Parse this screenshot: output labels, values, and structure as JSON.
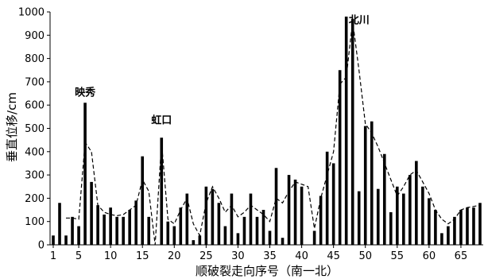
{
  "chart_data": {
    "type": "bar",
    "xlabel": "顺破裂走向序号（南一北）",
    "ylabel": "垂直位移/cm",
    "ylim": [
      0,
      1000
    ],
    "yticks": [
      0,
      100,
      200,
      300,
      400,
      500,
      600,
      700,
      800,
      900,
      1000
    ],
    "xticks": [
      1,
      5,
      10,
      15,
      20,
      25,
      30,
      35,
      40,
      45,
      50,
      55,
      60,
      65
    ],
    "x": [
      1,
      2,
      3,
      4,
      5,
      6,
      7,
      8,
      9,
      10,
      11,
      12,
      13,
      14,
      15,
      16,
      17,
      18,
      19,
      20,
      21,
      22,
      23,
      24,
      25,
      26,
      27,
      28,
      29,
      30,
      31,
      32,
      33,
      34,
      35,
      36,
      37,
      38,
      39,
      40,
      41,
      42,
      43,
      44,
      45,
      46,
      47,
      48,
      49,
      50,
      51,
      52,
      53,
      54,
      55,
      56,
      57,
      58,
      59,
      60,
      61,
      62,
      63,
      64,
      65,
      66,
      67,
      68
    ],
    "values": [
      40,
      180,
      40,
      120,
      80,
      610,
      270,
      170,
      130,
      160,
      120,
      120,
      150,
      190,
      380,
      120,
      0,
      460,
      100,
      80,
      160,
      220,
      20,
      40,
      250,
      240,
      180,
      80,
      220,
      50,
      120,
      220,
      120,
      150,
      60,
      330,
      30,
      300,
      280,
      250,
      0,
      60,
      210,
      400,
      350,
      750,
      980,
      970,
      230,
      510,
      530,
      240,
      390,
      140,
      250,
      220,
      300,
      360,
      250,
      200,
      150,
      50,
      80,
      120,
      150,
      160,
      160,
      180
    ],
    "series": [
      {
        "type": "line",
        "style": "dashed",
        "values": [
          null,
          null,
          115,
          115,
          110,
          440,
          400,
          170,
          140,
          130,
          125,
          130,
          150,
          170,
          280,
          230,
          0,
          440,
          110,
          90,
          150,
          200,
          90,
          40,
          180,
          250,
          200,
          140,
          170,
          120,
          140,
          170,
          150,
          130,
          100,
          200,
          180,
          230,
          270,
          260,
          250,
          70,
          200,
          300,
          400,
          690,
          720,
          960,
          750,
          520,
          480,
          420,
          350,
          280,
          210,
          250,
          300,
          320,
          270,
          220,
          150,
          110,
          90,
          110,
          150,
          160,
          165,
          170
        ]
      }
    ],
    "annotations": [
      {
        "text": "映秀",
        "x": 6,
        "y": 640
      },
      {
        "text": "虹口",
        "x": 18,
        "y": 520
      },
      {
        "text": "北川",
        "x": 49,
        "y": 950
      }
    ],
    "grid": false
  }
}
